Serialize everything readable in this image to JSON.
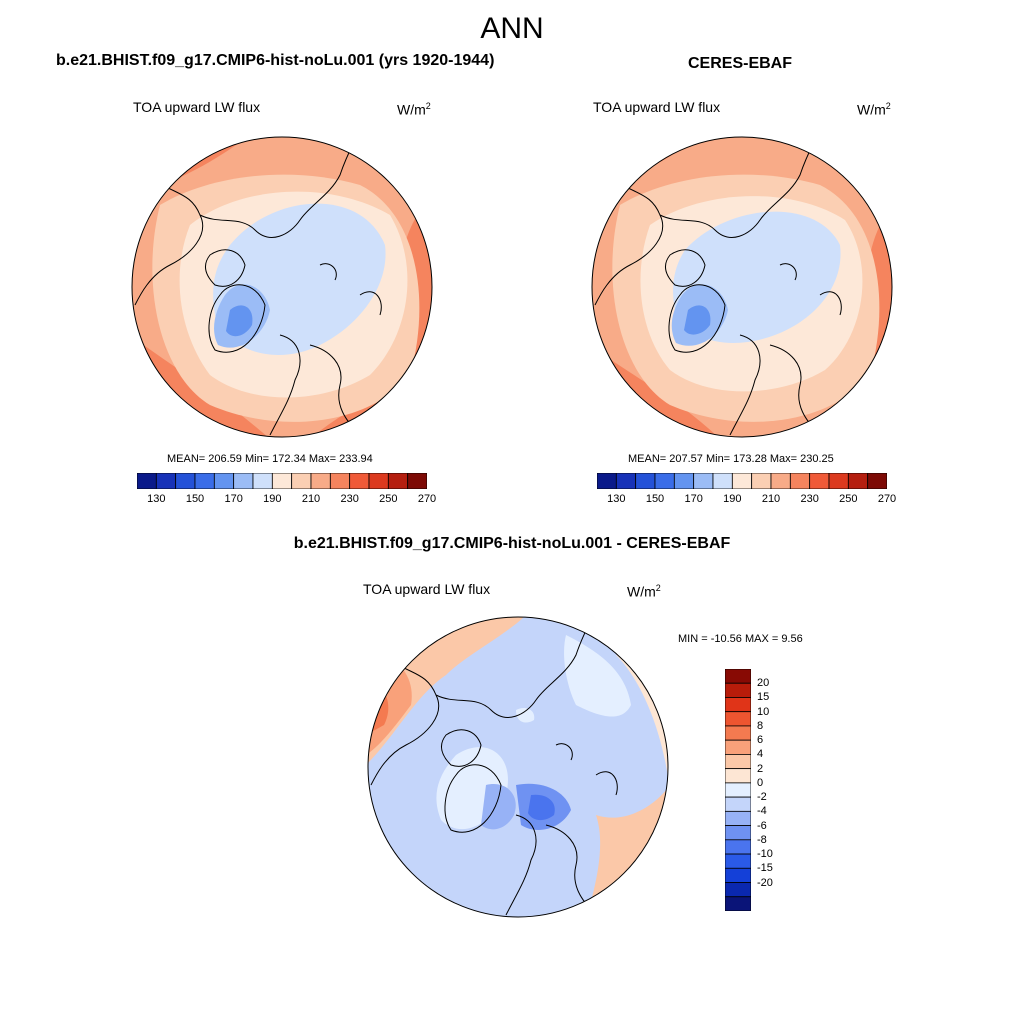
{
  "title": "ANN",
  "units_base": "W/m",
  "units_exp": "2",
  "variable": "TOA upward LW flux",
  "colors": {
    "coast": "#000000",
    "abs_scale": [
      "#0a1a8a",
      "#1732b8",
      "#2452d8",
      "#3a6de8",
      "#6394f0",
      "#9bbcf6",
      "#cfe0fb",
      "#fde8d8",
      "#fbcfb3",
      "#f8ab88",
      "#f5845e",
      "#f05a38",
      "#dc3a1f",
      "#b51f10",
      "#7d0a05"
    ],
    "diff_scale": [
      "#0a1478",
      "#0a28b0",
      "#1440d8",
      "#2a5ae8",
      "#4a74ee",
      "#6f92f2",
      "#97b2f6",
      "#c4d5fa",
      "#e4efff",
      "#fde6d4",
      "#fbc8a8",
      "#f9a17a",
      "#f47a50",
      "#ee5530",
      "#e03418",
      "#b81c0a",
      "#880a04"
    ]
  },
  "panels": [
    {
      "title": "b.e21.BHIST.f09_g17.CMIP6-hist-noLu.001 (yrs 1920-1944)",
      "stats": "MEAN= 206.59  Min= 172.34  Max= 233.94"
    },
    {
      "title": "CERES-EBAF",
      "stats": "MEAN= 207.57  Min= 173.28  Max= 230.25"
    }
  ],
  "abs_colorbar_ticks": [
    "130",
    "150",
    "170",
    "190",
    "210",
    "230",
    "250",
    "270"
  ],
  "diff_panel": {
    "title": "b.e21.BHIST.f09_g17.CMIP6-hist-noLu.001 - CERES-EBAF",
    "stats": "MIN = -10.56 MAX =   9.56",
    "colorbar_ticks": [
      "20",
      "15",
      "10",
      "8",
      "6",
      "4",
      "2",
      "0",
      "-2",
      "-4",
      "-6",
      "-8",
      "-10",
      "-15",
      "-20"
    ]
  }
}
